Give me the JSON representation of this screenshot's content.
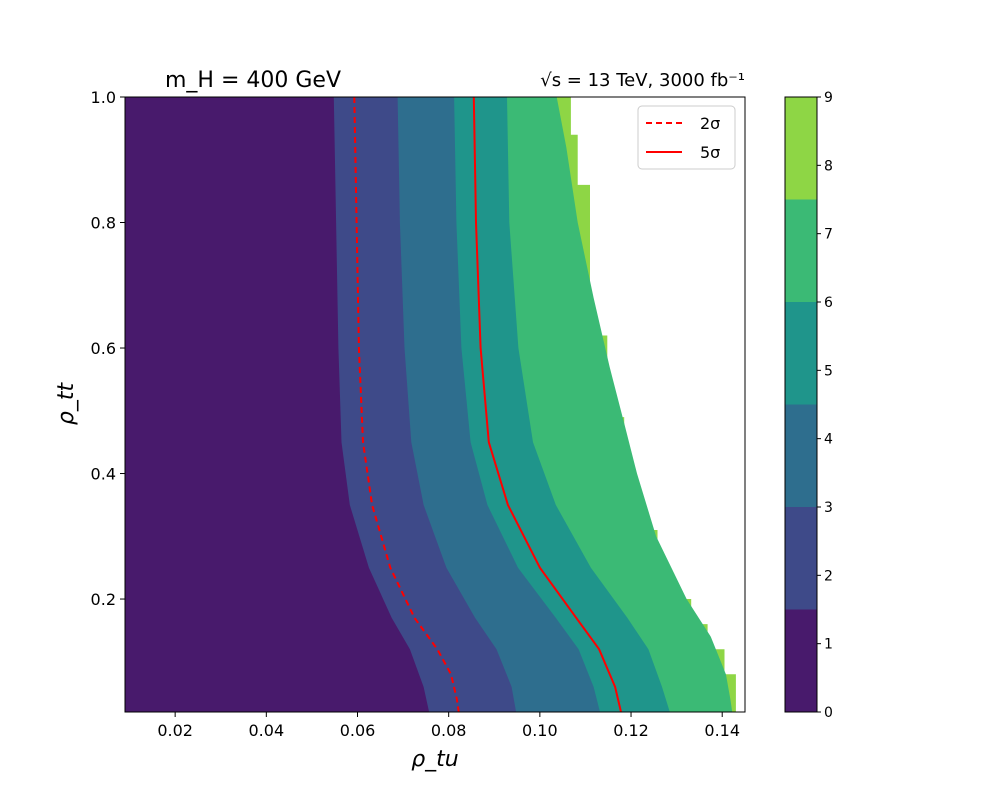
{
  "chart_data": {
    "type": "contour",
    "title_left": "m_H = 400 GeV",
    "title_right": "√s = 13 TeV, 3000 fb⁻¹",
    "xlabel": "ρ_tu",
    "ylabel": "ρ_tt",
    "xlim": [
      0.009,
      0.145
    ],
    "ylim": [
      0.02,
      1.0
    ],
    "xticks": [
      "0.02",
      "0.04",
      "0.06",
      "0.08",
      "0.10",
      "0.12",
      "0.14"
    ],
    "yticks": [
      "0.2",
      "0.4",
      "0.6",
      "0.8",
      "1.0"
    ],
    "grid": false,
    "legend_position": "top-right",
    "legend": [
      {
        "label": "2σ",
        "style": "dashed",
        "color": "#ff0000"
      },
      {
        "label": "5σ",
        "style": "solid",
        "color": "#ff0000"
      }
    ],
    "colorbar": {
      "ticks": [
        "0",
        "1",
        "2",
        "3",
        "4",
        "5",
        "6",
        "7",
        "8",
        "9"
      ],
      "levels": [
        0,
        1.5,
        3,
        4.5,
        6,
        7.5,
        9
      ],
      "colors": [
        "#481a6c",
        "#3e4a89",
        "#2e6e8e",
        "#1f958b",
        "#3bba75",
        "#8ed645"
      ]
    },
    "contour_boundaries": [
      {
        "level": 1.5,
        "points": [
          [
            0.0548,
            1.0
          ],
          [
            0.0553,
            0.8
          ],
          [
            0.0558,
            0.6
          ],
          [
            0.0565,
            0.45
          ],
          [
            0.0583,
            0.35
          ],
          [
            0.0625,
            0.25
          ],
          [
            0.0675,
            0.17
          ],
          [
            0.0715,
            0.12
          ],
          [
            0.0745,
            0.06
          ],
          [
            0.0757,
            0.02
          ]
        ]
      },
      {
        "level": 3,
        "points": [
          [
            0.0688,
            1.0
          ],
          [
            0.0693,
            0.8
          ],
          [
            0.0703,
            0.6
          ],
          [
            0.0718,
            0.45
          ],
          [
            0.0745,
            0.35
          ],
          [
            0.0795,
            0.25
          ],
          [
            0.0858,
            0.17
          ],
          [
            0.0905,
            0.12
          ],
          [
            0.0938,
            0.06
          ],
          [
            0.0948,
            0.02
          ]
        ]
      },
      {
        "level": 4.5,
        "points": [
          [
            0.0812,
            1.0
          ],
          [
            0.0817,
            0.8
          ],
          [
            0.0828,
            0.6
          ],
          [
            0.0848,
            0.45
          ],
          [
            0.0885,
            0.35
          ],
          [
            0.0952,
            0.25
          ],
          [
            0.1035,
            0.17
          ],
          [
            0.1085,
            0.12
          ],
          [
            0.1118,
            0.06
          ],
          [
            0.1132,
            0.02
          ]
        ]
      },
      {
        "level": 6,
        "points": [
          [
            0.0928,
            1.0
          ],
          [
            0.0933,
            0.8
          ],
          [
            0.0953,
            0.6
          ],
          [
            0.0985,
            0.45
          ],
          [
            0.1035,
            0.35
          ],
          [
            0.1112,
            0.25
          ],
          [
            0.1192,
            0.17
          ],
          [
            0.1238,
            0.12
          ],
          [
            0.1268,
            0.06
          ],
          [
            0.1285,
            0.02
          ]
        ]
      },
      {
        "level": 7.5,
        "points": [
          [
            0.1037,
            1.0
          ],
          [
            0.1058,
            0.92
          ],
          [
            0.1083,
            0.8
          ],
          [
            0.1118,
            0.68
          ],
          [
            0.1153,
            0.57
          ],
          [
            0.1185,
            0.48
          ],
          [
            0.1213,
            0.4
          ],
          [
            0.1255,
            0.3
          ],
          [
            0.1322,
            0.2
          ],
          [
            0.1375,
            0.14
          ],
          [
            0.1408,
            0.08
          ],
          [
            0.1418,
            0.04
          ],
          [
            0.1422,
            0.02
          ]
        ]
      }
    ],
    "data_edge": [
      [
        0.1068,
        1.0
      ],
      [
        0.1068,
        0.94
      ],
      [
        0.1083,
        0.94
      ],
      [
        0.1083,
        0.86
      ],
      [
        0.111,
        0.86
      ],
      [
        0.111,
        0.62
      ],
      [
        0.1148,
        0.62
      ],
      [
        0.1148,
        0.49
      ],
      [
        0.1185,
        0.49
      ],
      [
        0.1185,
        0.37
      ],
      [
        0.1222,
        0.37
      ],
      [
        0.1222,
        0.31
      ],
      [
        0.1258,
        0.31
      ],
      [
        0.1258,
        0.24
      ],
      [
        0.1295,
        0.24
      ],
      [
        0.1295,
        0.2
      ],
      [
        0.1332,
        0.2
      ],
      [
        0.1332,
        0.16
      ],
      [
        0.1368,
        0.16
      ],
      [
        0.1368,
        0.12
      ],
      [
        0.1405,
        0.12
      ],
      [
        0.1405,
        0.08
      ],
      [
        0.143,
        0.08
      ],
      [
        0.143,
        0.02
      ]
    ],
    "significance_lines": [
      {
        "label": "2σ",
        "style": "dashed",
        "color": "#ff0000",
        "points": [
          [
            0.0593,
            1.0
          ],
          [
            0.0598,
            0.8
          ],
          [
            0.0603,
            0.6
          ],
          [
            0.0612,
            0.45
          ],
          [
            0.0632,
            0.35
          ],
          [
            0.0672,
            0.25
          ],
          [
            0.0725,
            0.17
          ],
          [
            0.0775,
            0.12
          ],
          [
            0.0805,
            0.08
          ],
          [
            0.0818,
            0.04
          ],
          [
            0.0822,
            0.02
          ]
        ]
      },
      {
        "label": "5σ",
        "style": "solid",
        "color": "#ff0000",
        "points": [
          [
            0.0855,
            1.0
          ],
          [
            0.086,
            0.8
          ],
          [
            0.087,
            0.6
          ],
          [
            0.0888,
            0.45
          ],
          [
            0.093,
            0.35
          ],
          [
            0.1,
            0.25
          ],
          [
            0.108,
            0.17
          ],
          [
            0.113,
            0.12
          ],
          [
            0.1165,
            0.06
          ],
          [
            0.1178,
            0.02
          ]
        ]
      }
    ]
  }
}
